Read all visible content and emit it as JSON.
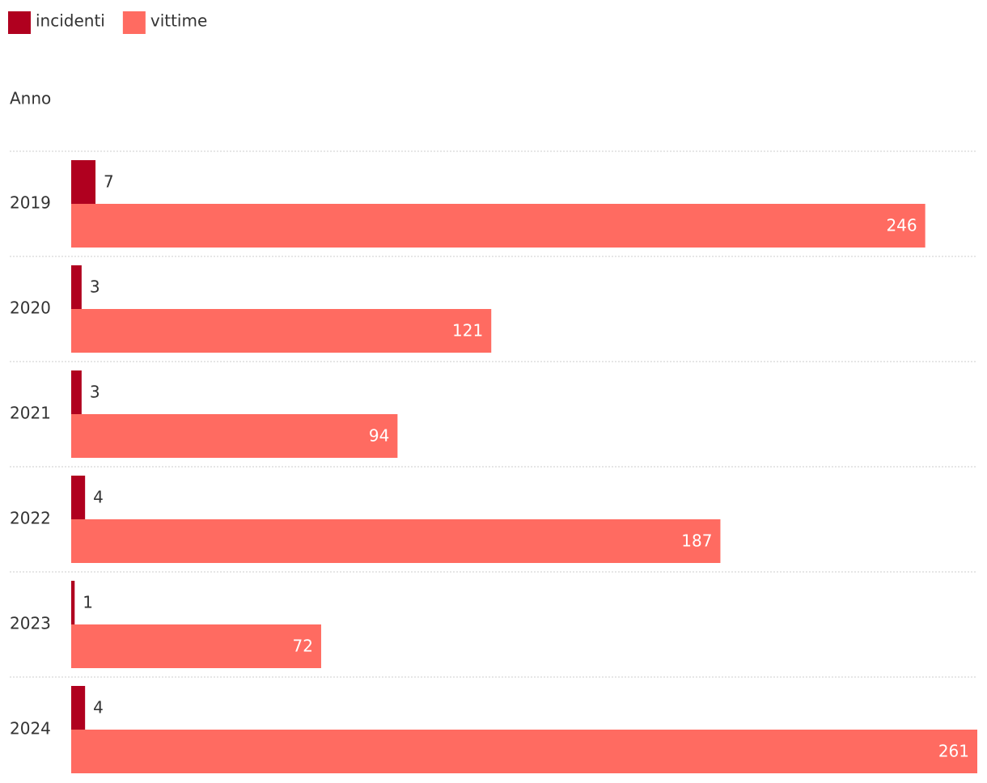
{
  "chart_data": {
    "type": "bar",
    "orientation": "horizontal",
    "y_label": "Anno",
    "categories": [
      "2019",
      "2020",
      "2021",
      "2022",
      "2023",
      "2024"
    ],
    "series": [
      {
        "name": "incidenti",
        "color": "#b0001f",
        "values": [
          7,
          3,
          3,
          4,
          1,
          4
        ]
      },
      {
        "name": "vittime",
        "color": "#ff6b61",
        "values": [
          246,
          121,
          94,
          187,
          72,
          261
        ]
      }
    ],
    "xlim": [
      0,
      261
    ],
    "legend": "top-left"
  }
}
